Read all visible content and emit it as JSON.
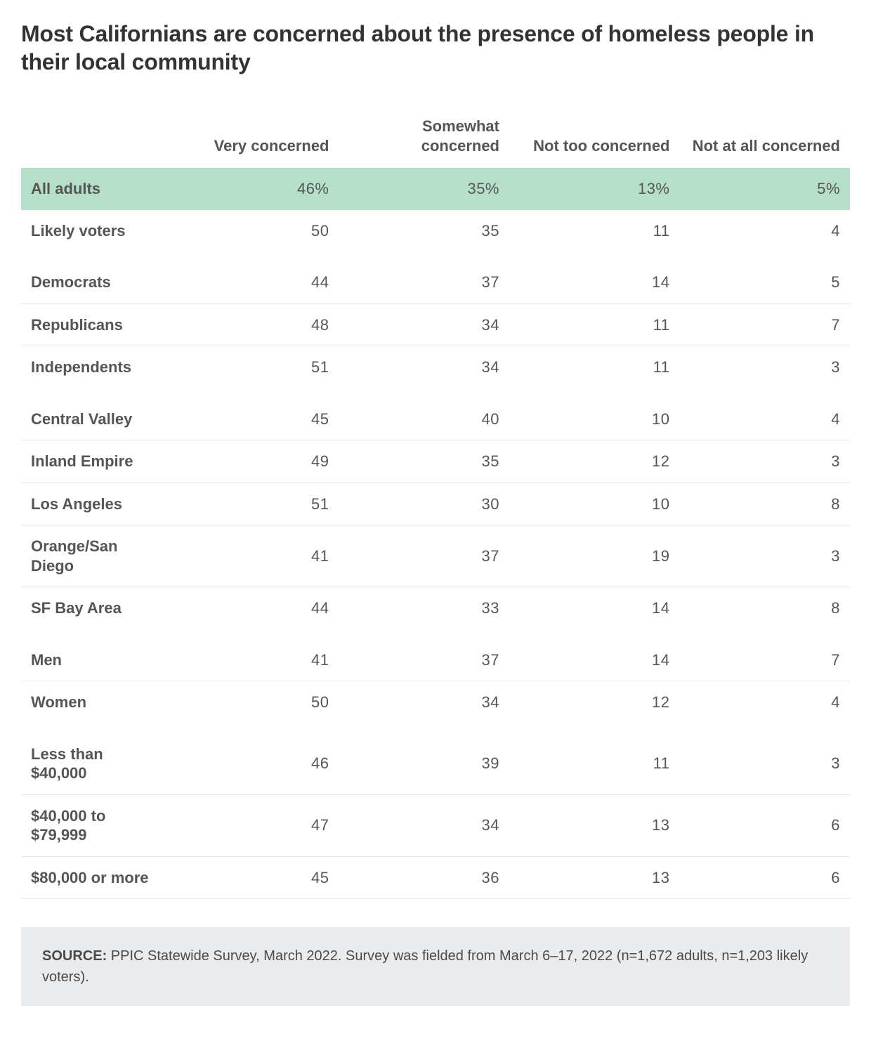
{
  "title": "Most Californians are concerned about the presence of homeless people in their local community",
  "table": {
    "type": "table",
    "columns": [
      "",
      "Very concerned",
      "Somewhat concerned",
      "Not too concerned",
      "Not at all concerned"
    ],
    "column_widths": [
      "210px",
      "auto",
      "auto",
      "auto",
      "auto"
    ],
    "header_fontsize": 22,
    "cell_fontsize": 22,
    "text_color": "#555555",
    "border_color": "#e8e8e8",
    "highlight_color": "#b5dfc9",
    "background_color": "#ffffff",
    "groups": [
      {
        "rows": [
          {
            "label": "All adults",
            "values": [
              "46%",
              "35%",
              "13%",
              "5%"
            ],
            "highlight": true
          },
          {
            "label": "Likely voters",
            "values": [
              "50",
              "35",
              "11",
              "4"
            ]
          }
        ]
      },
      {
        "rows": [
          {
            "label": "Democrats",
            "values": [
              "44",
              "37",
              "14",
              "5"
            ]
          },
          {
            "label": "Republicans",
            "values": [
              "48",
              "34",
              "11",
              "7"
            ]
          },
          {
            "label": "Independents",
            "values": [
              "51",
              "34",
              "11",
              "3"
            ]
          }
        ]
      },
      {
        "rows": [
          {
            "label": "Central Valley",
            "values": [
              "45",
              "40",
              "10",
              "4"
            ]
          },
          {
            "label": "Inland Empire",
            "values": [
              "49",
              "35",
              "12",
              "3"
            ]
          },
          {
            "label": "Los Angeles",
            "values": [
              "51",
              "30",
              "10",
              "8"
            ]
          },
          {
            "label": "Orange/San Diego",
            "values": [
              "41",
              "37",
              "19",
              "3"
            ]
          },
          {
            "label": "SF Bay Area",
            "values": [
              "44",
              "33",
              "14",
              "8"
            ]
          }
        ]
      },
      {
        "rows": [
          {
            "label": "Men",
            "values": [
              "41",
              "37",
              "14",
              "7"
            ]
          },
          {
            "label": "Women",
            "values": [
              "50",
              "34",
              "12",
              "4"
            ]
          }
        ]
      },
      {
        "rows": [
          {
            "label": "Less than $40,000",
            "values": [
              "46",
              "39",
              "11",
              "3"
            ]
          },
          {
            "label": "$40,000 to $79,999",
            "values": [
              "47",
              "34",
              "13",
              "6"
            ]
          },
          {
            "label": "$80,000 or more",
            "values": [
              "45",
              "36",
              "13",
              "6"
            ]
          }
        ]
      }
    ]
  },
  "source": {
    "label": "SOURCE:",
    "text": "PPIC Statewide Survey, March 2022. Survey was fielded from March 6–17, 2022 (n=1,672 adults, n=1,203 likely voters).",
    "background_color": "#e9ebed",
    "fontsize": 20
  }
}
